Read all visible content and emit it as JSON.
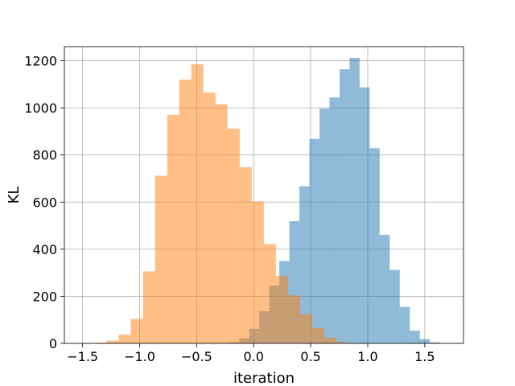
{
  "chart_data": {
    "type": "histogram",
    "title": "",
    "xlabel": "iteration",
    "ylabel": "KL",
    "xlim": [
      -1.66,
      1.84
    ],
    "ylim": [
      0,
      1260
    ],
    "grid": true,
    "legend": "none",
    "xticks": [
      -1.5,
      -1.0,
      -0.5,
      0.0,
      0.5,
      1.0,
      1.5
    ],
    "xtick_labels": [
      "−1.5",
      "−1.0",
      "−0.5",
      "0.0",
      "0.5",
      "1.0",
      "1.5"
    ],
    "yticks": [
      0,
      200,
      400,
      600,
      800,
      1000,
      1200
    ],
    "ytick_labels": [
      "0",
      "200",
      "400",
      "600",
      "800",
      "1000",
      "1200"
    ],
    "series": [
      {
        "color": "#1f77b4",
        "opacity": 0.5,
        "bins": [
          [
            -0.215,
            -0.127,
            5
          ],
          [
            -0.127,
            -0.039,
            22
          ],
          [
            -0.039,
            0.049,
            62
          ],
          [
            0.049,
            0.137,
            137
          ],
          [
            0.137,
            0.225,
            245
          ],
          [
            0.225,
            0.313,
            350
          ],
          [
            0.313,
            0.401,
            519
          ],
          [
            0.401,
            0.489,
            667
          ],
          [
            0.489,
            0.577,
            868
          ],
          [
            0.577,
            0.665,
            997
          ],
          [
            0.665,
            0.753,
            1044
          ],
          [
            0.753,
            0.841,
            1164
          ],
          [
            0.841,
            0.929,
            1212
          ],
          [
            0.929,
            1.017,
            1087
          ],
          [
            1.017,
            1.105,
            829
          ],
          [
            1.105,
            1.193,
            461
          ],
          [
            1.193,
            1.281,
            312
          ],
          [
            1.281,
            1.369,
            155
          ],
          [
            1.369,
            1.457,
            54
          ],
          [
            1.457,
            1.545,
            18
          ],
          [
            1.545,
            1.633,
            4
          ]
        ]
      },
      {
        "color": "#ff7f0e",
        "opacity": 0.5,
        "bins": [
          [
            -1.395,
            -1.289,
            3
          ],
          [
            -1.289,
            -1.183,
            12
          ],
          [
            -1.183,
            -1.077,
            37
          ],
          [
            -1.077,
            -0.971,
            104
          ],
          [
            -0.971,
            -0.865,
            306
          ],
          [
            -0.865,
            -0.759,
            712
          ],
          [
            -0.759,
            -0.653,
            970
          ],
          [
            -0.653,
            -0.547,
            1120
          ],
          [
            -0.547,
            -0.441,
            1185
          ],
          [
            -0.441,
            -0.335,
            1065
          ],
          [
            -0.335,
            -0.229,
            1015
          ],
          [
            -0.229,
            -0.123,
            912
          ],
          [
            -0.123,
            -0.017,
            748
          ],
          [
            -0.017,
            0.089,
            603
          ],
          [
            0.089,
            0.195,
            421
          ],
          [
            0.195,
            0.301,
            287
          ],
          [
            0.301,
            0.407,
            204
          ],
          [
            0.407,
            0.513,
            124
          ],
          [
            0.513,
            0.619,
            66
          ],
          [
            0.619,
            0.725,
            25
          ],
          [
            0.725,
            0.831,
            6
          ]
        ]
      }
    ]
  }
}
